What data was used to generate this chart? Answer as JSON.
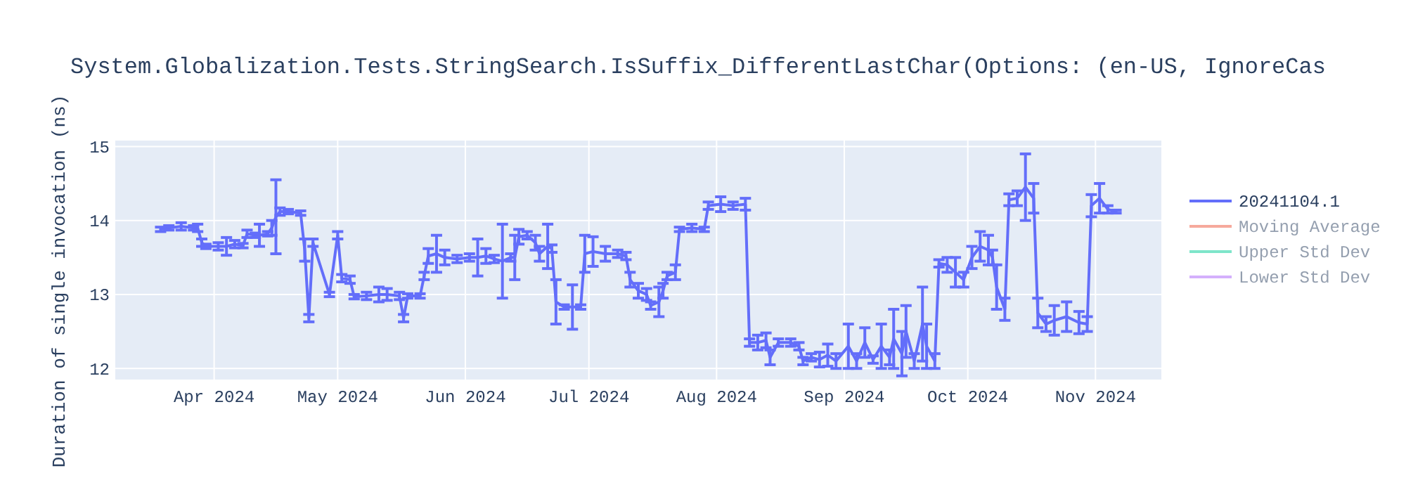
{
  "chart_data": {
    "type": "line",
    "title": "System.Globalization.Tests.StringSearch.IsSuffix_DifferentLastChar(Options: (en-US, IgnoreCas",
    "ylabel": "Duration of single invocation (ns)",
    "x": [
      "2024-03-19",
      "2024-03-21",
      "2024-03-24",
      "2024-03-27",
      "2024-03-28",
      "2024-03-29",
      "2024-03-30",
      "2024-04-02",
      "2024-04-04",
      "2024-04-06",
      "2024-04-08",
      "2024-04-09",
      "2024-04-11",
      "2024-04-12",
      "2024-04-14",
      "2024-04-15",
      "2024-04-16",
      "2024-04-17",
      "2024-04-19",
      "2024-04-22",
      "2024-04-23",
      "2024-04-24",
      "2024-04-25",
      "2024-04-29",
      "2024-05-01",
      "2024-05-02",
      "2024-05-04",
      "2024-05-05",
      "2024-05-08",
      "2024-05-11",
      "2024-05-13",
      "2024-05-16",
      "2024-05-17",
      "2024-05-18",
      "2024-05-21",
      "2024-05-22",
      "2024-05-23",
      "2024-05-25",
      "2024-05-27",
      "2024-05-30",
      "2024-06-02",
      "2024-06-04",
      "2024-06-06",
      "2024-06-08",
      "2024-06-10",
      "2024-06-12",
      "2024-06-13",
      "2024-06-14",
      "2024-06-16",
      "2024-06-18",
      "2024-06-19",
      "2024-06-21",
      "2024-06-22",
      "2024-06-23",
      "2024-06-25",
      "2024-06-27",
      "2024-06-29",
      "2024-06-30",
      "2024-07-02",
      "2024-07-05",
      "2024-07-08",
      "2024-07-10",
      "2024-07-11",
      "2024-07-13",
      "2024-07-15",
      "2024-07-16",
      "2024-07-18",
      "2024-07-19",
      "2024-07-20",
      "2024-07-22",
      "2024-07-23",
      "2024-07-26",
      "2024-07-29",
      "2024-07-30",
      "2024-08-02",
      "2024-08-05",
      "2024-08-08",
      "2024-08-09",
      "2024-08-11",
      "2024-08-13",
      "2024-08-14",
      "2024-08-16",
      "2024-08-19",
      "2024-08-21",
      "2024-08-22",
      "2024-08-24",
      "2024-08-26",
      "2024-08-28",
      "2024-08-30",
      "2024-09-02",
      "2024-09-04",
      "2024-09-06",
      "2024-09-08",
      "2024-09-10",
      "2024-09-12",
      "2024-09-13",
      "2024-09-15",
      "2024-09-16",
      "2024-09-18",
      "2024-09-20",
      "2024-09-21",
      "2024-09-23",
      "2024-09-24",
      "2024-09-26",
      "2024-09-28",
      "2024-09-30",
      "2024-10-02",
      "2024-10-04",
      "2024-10-06",
      "2024-10-07",
      "2024-10-08",
      "2024-10-10",
      "2024-10-11",
      "2024-10-13",
      "2024-10-15",
      "2024-10-17",
      "2024-10-18",
      "2024-10-20",
      "2024-10-22",
      "2024-10-25",
      "2024-10-28",
      "2024-10-30",
      "2024-10-31",
      "2024-11-02",
      "2024-11-04",
      "2024-11-06"
    ],
    "series": [
      {
        "name": "20241104.1",
        "color": "#636efa",
        "values": [
          13.88,
          13.9,
          13.92,
          13.9,
          13.9,
          13.7,
          13.65,
          13.65,
          13.65,
          13.68,
          13.66,
          13.82,
          13.8,
          13.8,
          13.82,
          13.9,
          14.05,
          14.12,
          14.12,
          14.1,
          13.6,
          12.68,
          13.7,
          13.0,
          13.8,
          13.22,
          13.2,
          12.97,
          12.98,
          13.0,
          13.0,
          12.98,
          12.68,
          12.98,
          12.98,
          13.25,
          13.52,
          13.55,
          13.5,
          13.48,
          13.5,
          13.5,
          13.52,
          13.48,
          13.45,
          13.5,
          13.5,
          13.78,
          13.8,
          13.7,
          13.55,
          13.65,
          13.62,
          12.9,
          12.83,
          12.83,
          12.83,
          13.55,
          13.58,
          13.55,
          13.55,
          13.52,
          13.2,
          13.05,
          13.0,
          12.85,
          12.9,
          13.05,
          13.25,
          13.3,
          13.88,
          13.9,
          13.88,
          14.2,
          14.22,
          14.2,
          14.22,
          12.35,
          12.35,
          12.38,
          12.15,
          12.35,
          12.35,
          12.3,
          12.1,
          12.15,
          12.12,
          12.18,
          12.1,
          12.3,
          12.1,
          12.35,
          12.12,
          12.3,
          12.15,
          12.4,
          12.2,
          12.5,
          12.1,
          12.6,
          12.3,
          12.1,
          13.42,
          13.4,
          13.3,
          13.2,
          13.5,
          13.65,
          13.6,
          13.5,
          13.1,
          12.8,
          14.28,
          14.3,
          14.45,
          14.3,
          12.75,
          12.6,
          12.65,
          12.7,
          12.62,
          12.6,
          14.2,
          14.3,
          14.15,
          14.12
        ],
        "errors": [
          0.03,
          0.03,
          0.05,
          0.03,
          0.05,
          0.05,
          0.03,
          0.05,
          0.12,
          0.05,
          0.03,
          0.05,
          0.03,
          0.15,
          0.03,
          0.1,
          0.5,
          0.05,
          0.03,
          0.03,
          0.15,
          0.05,
          0.05,
          0.03,
          0.05,
          0.05,
          0.05,
          0.03,
          0.05,
          0.1,
          0.08,
          0.05,
          0.05,
          0.03,
          0.03,
          0.05,
          0.1,
          0.25,
          0.1,
          0.05,
          0.05,
          0.25,
          0.1,
          0.05,
          0.5,
          0.05,
          0.3,
          0.1,
          0.05,
          0.1,
          0.1,
          0.3,
          0.05,
          0.3,
          0.03,
          0.3,
          0.03,
          0.25,
          0.2,
          0.1,
          0.05,
          0.05,
          0.1,
          0.1,
          0.08,
          0.05,
          0.2,
          0.1,
          0.05,
          0.1,
          0.03,
          0.05,
          0.03,
          0.05,
          0.1,
          0.05,
          0.08,
          0.05,
          0.1,
          0.1,
          0.1,
          0.05,
          0.05,
          0.05,
          0.05,
          0.05,
          0.1,
          0.15,
          0.1,
          0.3,
          0.1,
          0.2,
          0.05,
          0.3,
          0.1,
          0.4,
          0.3,
          0.35,
          0.1,
          0.5,
          0.3,
          0.1,
          0.05,
          0.1,
          0.2,
          0.1,
          0.15,
          0.2,
          0.2,
          0.1,
          0.3,
          0.15,
          0.08,
          0.1,
          0.45,
          0.2,
          0.2,
          0.1,
          0.2,
          0.2,
          0.15,
          0.1,
          0.15,
          0.2,
          0.05,
          0.02
        ]
      },
      {
        "name": "Moving Average",
        "color": "#ef553b",
        "values": [
          null,
          null,
          null,
          null,
          null,
          null,
          null,
          null,
          null,
          null,
          null,
          null,
          null,
          null,
          null,
          null,
          null,
          null,
          null,
          null,
          null,
          null,
          null,
          null,
          null,
          null,
          null,
          null,
          null,
          null,
          null,
          null,
          null,
          null,
          null,
          null,
          null,
          null,
          null,
          null,
          null,
          null,
          null,
          null,
          null,
          null,
          null,
          null,
          null,
          null,
          null,
          null,
          null,
          null,
          null,
          null,
          null,
          null,
          null,
          null,
          null,
          null,
          null,
          null,
          null,
          null,
          null,
          null,
          null,
          null,
          null,
          null,
          null,
          null,
          null,
          null,
          null,
          null,
          null,
          null,
          null,
          null,
          null,
          null,
          null,
          null,
          null,
          null,
          null,
          null,
          null,
          null,
          null,
          null,
          null,
          null,
          null,
          null,
          null,
          null,
          null,
          null,
          null,
          null,
          null,
          null,
          null,
          null,
          null,
          null,
          null,
          null,
          null,
          null,
          null,
          null,
          null,
          null,
          null,
          null,
          null,
          null,
          null,
          null,
          null,
          null
        ]
      },
      {
        "name": "Upper Std Dev",
        "color": "#00cc96",
        "values": [
          null,
          null,
          null,
          null,
          null,
          null,
          null,
          null,
          null,
          null,
          null,
          null,
          null,
          null,
          null,
          null,
          null,
          null,
          null,
          null,
          null,
          null,
          null,
          null,
          null,
          null,
          null,
          null,
          null,
          null,
          null,
          null,
          null,
          null,
          null,
          null,
          null,
          null,
          null,
          null,
          null,
          null,
          null,
          null,
          null,
          null,
          null,
          null,
          null,
          null,
          null,
          null,
          null,
          null,
          null,
          null,
          null,
          null,
          null,
          null,
          null,
          null,
          null,
          null,
          null,
          null,
          null,
          null,
          null,
          null,
          null,
          null,
          null,
          null,
          null,
          null,
          null,
          null,
          null,
          null,
          null,
          null,
          null,
          null,
          null,
          null,
          null,
          null,
          null,
          null,
          null,
          null,
          null,
          null,
          null,
          null,
          null,
          null,
          null,
          null,
          null,
          null,
          null,
          null,
          null,
          null,
          null,
          null,
          null,
          null,
          null,
          null,
          null,
          null,
          null,
          null,
          null,
          null,
          null,
          null,
          null,
          null,
          null,
          null,
          null,
          null
        ]
      },
      {
        "name": "Lower Std Dev",
        "color": "#ab63fa",
        "values": [
          null,
          null,
          null,
          null,
          null,
          null,
          null,
          null,
          null,
          null,
          null,
          null,
          null,
          null,
          null,
          null,
          null,
          null,
          null,
          null,
          null,
          null,
          null,
          null,
          null,
          null,
          null,
          null,
          null,
          null,
          null,
          null,
          null,
          null,
          null,
          null,
          null,
          null,
          null,
          null,
          null,
          null,
          null,
          null,
          null,
          null,
          null,
          null,
          null,
          null,
          null,
          null,
          null,
          null,
          null,
          null,
          null,
          null,
          null,
          null,
          null,
          null,
          null,
          null,
          null,
          null,
          null,
          null,
          null,
          null,
          null,
          null,
          null,
          null,
          null,
          null,
          null,
          null,
          null,
          null,
          null,
          null,
          null,
          null,
          null,
          null,
          null,
          null,
          null,
          null,
          null,
          null,
          null,
          null,
          null,
          null,
          null,
          null,
          null,
          null,
          null,
          null,
          null,
          null,
          null,
          null,
          null,
          null,
          null,
          null,
          null,
          null,
          null,
          null,
          null,
          null,
          null,
          null,
          null,
          null,
          null,
          null,
          null,
          null,
          null,
          null
        ]
      }
    ],
    "xlim": [
      "2024-03-08",
      "2024-11-17"
    ],
    "xticks": [
      {
        "value": "2024-04-01",
        "label": "Apr 2024"
      },
      {
        "value": "2024-05-01",
        "label": "May 2024"
      },
      {
        "value": "2024-06-01",
        "label": "Jun 2024"
      },
      {
        "value": "2024-07-01",
        "label": "Jul 2024"
      },
      {
        "value": "2024-08-01",
        "label": "Aug 2024"
      },
      {
        "value": "2024-09-01",
        "label": "Sep 2024"
      },
      {
        "value": "2024-10-01",
        "label": "Oct 2024"
      },
      {
        "value": "2024-11-01",
        "label": "Nov 2024"
      }
    ],
    "ylim": [
      11.85,
      15.08
    ],
    "yticks": [
      12,
      13,
      14,
      15
    ],
    "grid": true,
    "legend": "right",
    "line_style": "solid"
  }
}
